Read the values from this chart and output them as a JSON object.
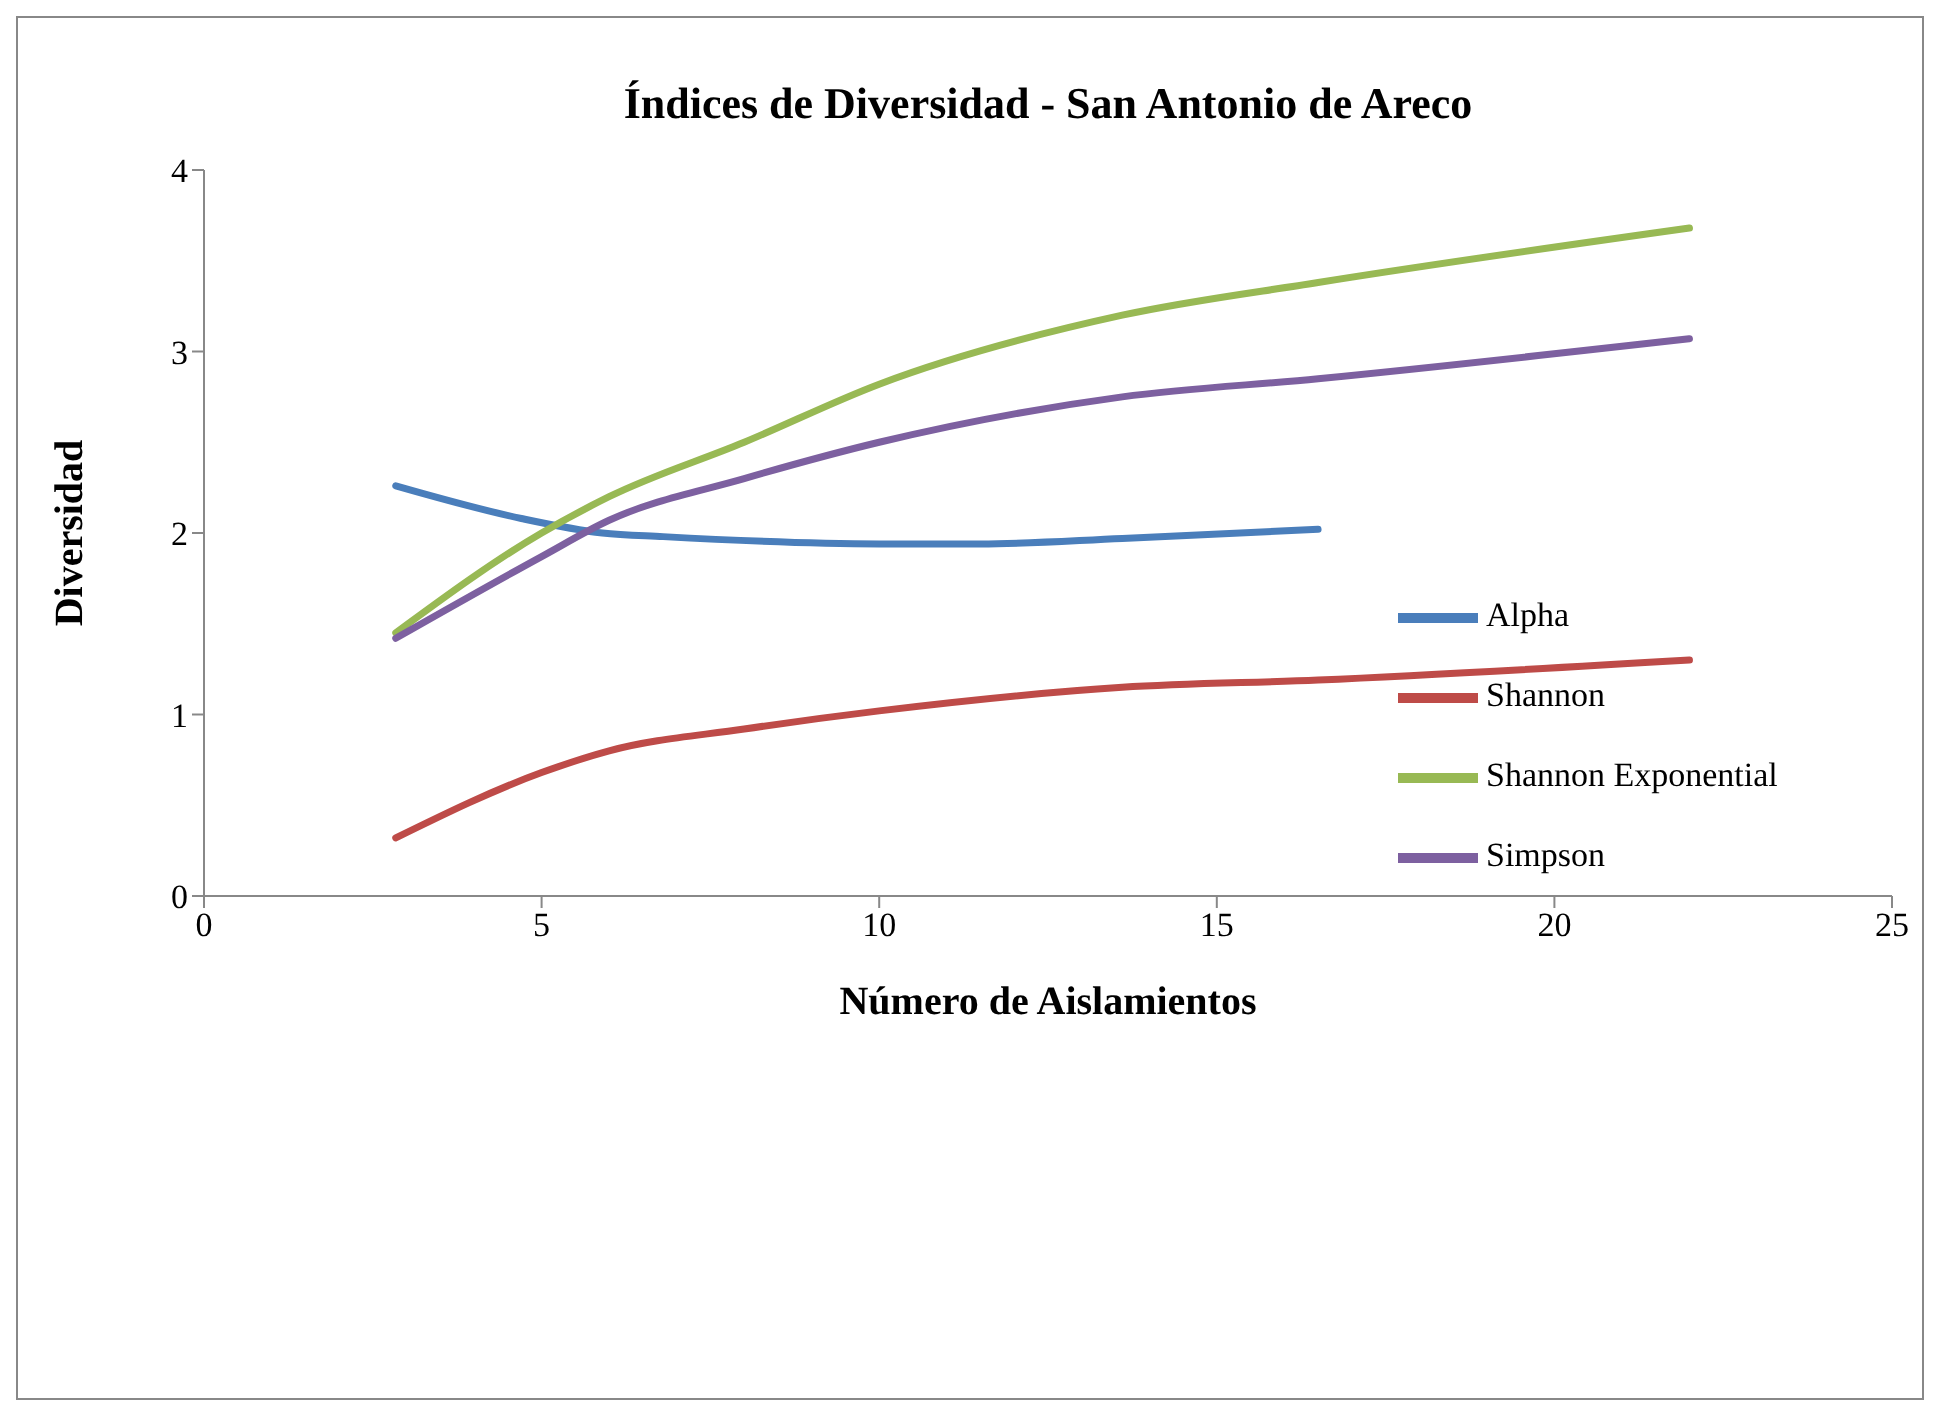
{
  "chart_data": {
    "type": "line",
    "title": "Índices de Diversidad - San Antonio de Areco",
    "xlabel": "Número de Aislamientos",
    "ylabel": "Diversidad",
    "xlim": [
      0,
      25
    ],
    "xticks": [
      0,
      5,
      10,
      15,
      20,
      25
    ],
    "ylim": [
      0,
      4
    ],
    "yticks": [
      0,
      1,
      2,
      3,
      4
    ],
    "grid": false,
    "legend": "bottom right",
    "marker": "none",
    "line_style": "solid",
    "series": [
      {
        "name": "Alpha",
        "color": "#4a7ebb",
        "x": [
          2.84,
          4.7,
          5.9,
          6.8,
          10,
          11.5,
          13.6,
          16.5
        ],
        "values": [
          2.26,
          2.08,
          2.0,
          1.98,
          1.94,
          1.94,
          1.97,
          2.02
        ]
      },
      {
        "name": "Shannon",
        "color": "#be4b48",
        "x": [
          2.84,
          5,
          6,
          8,
          10,
          13.6,
          16.5,
          22
        ],
        "values": [
          0.32,
          0.68,
          0.8,
          0.92,
          1.02,
          1.15,
          1.19,
          1.3
        ]
      },
      {
        "name": "Shannon Exponential",
        "color": "#98b954",
        "x": [
          2.84,
          5,
          6,
          8,
          10,
          13.6,
          16.5,
          22
        ],
        "values": [
          1.45,
          2.0,
          2.2,
          2.5,
          2.82,
          3.2,
          3.38,
          3.68
        ]
      },
      {
        "name": "Simpson",
        "color": "#7d60a0",
        "x": [
          2.84,
          5,
          6,
          8,
          10,
          13.6,
          16.5,
          22
        ],
        "values": [
          1.42,
          1.87,
          2.07,
          2.3,
          2.5,
          2.75,
          2.85,
          3.07
        ]
      }
    ]
  }
}
